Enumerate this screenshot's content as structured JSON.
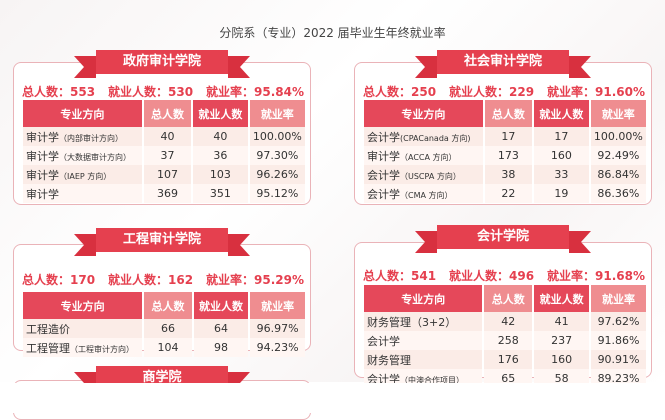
{
  "title": "分院系（专业）2022 届毕业生年终就业率",
  "headers": [
    "专业方向",
    "总人数",
    "就业人数",
    "就业率"
  ],
  "panels": [
    {
      "name": "政府审计学院",
      "stats": [
        "总人数：553",
        "就业人数：530",
        "就业率：95.84%"
      ],
      "rows": [
        [
          "审计学",
          "（内部审计方向）",
          "40",
          "40",
          "100.00%"
        ],
        [
          "审计学",
          "（大数据审计方向）",
          "37",
          "36",
          "97.30%"
        ],
        [
          "审计学",
          "（IAEP 方向）",
          "107",
          "103",
          "96.26%"
        ],
        [
          "审计学",
          "",
          "369",
          "351",
          "95.12%"
        ]
      ]
    },
    {
      "name": "社会审计学院",
      "stats": [
        "总人数：250",
        "就业人数：229",
        "就业率：91.60%"
      ],
      "rows": [
        [
          "会计学",
          "(CPACanada 方向)",
          "17",
          "17",
          "100.00%"
        ],
        [
          "审计学",
          "（ACCA 方向）",
          "173",
          "160",
          "92.49%"
        ],
        [
          "会计学",
          "（USCPA 方向）",
          "38",
          "33",
          "86.84%"
        ],
        [
          "会计学",
          "（CMA 方向）",
          "22",
          "19",
          "86.36%"
        ]
      ]
    },
    {
      "name": "工程审计学院",
      "stats": [
        "总人数：170",
        "就业人数：162",
        "就业率：95.29%"
      ],
      "rows": [
        [
          "工程造价",
          "",
          "66",
          "64",
          "96.97%"
        ],
        [
          "工程管理",
          "（工程审计方向）",
          "104",
          "98",
          "94.23%"
        ]
      ]
    },
    {
      "name": "会计学院",
      "stats": [
        "总人数：541",
        "就业人数：496",
        "就业率：91.68%"
      ],
      "rows": [
        [
          "财务管理（3+2）",
          "",
          "42",
          "41",
          "97.62%"
        ],
        [
          "会计学",
          "",
          "258",
          "237",
          "91.86%"
        ],
        [
          "财务管理",
          "",
          "176",
          "160",
          "90.91%"
        ],
        [
          "会计学",
          "（中澳合作项目）",
          "65",
          "58",
          "89.23%"
        ]
      ]
    },
    {
      "name": "商学院",
      "stats": [],
      "rows": []
    }
  ]
}
